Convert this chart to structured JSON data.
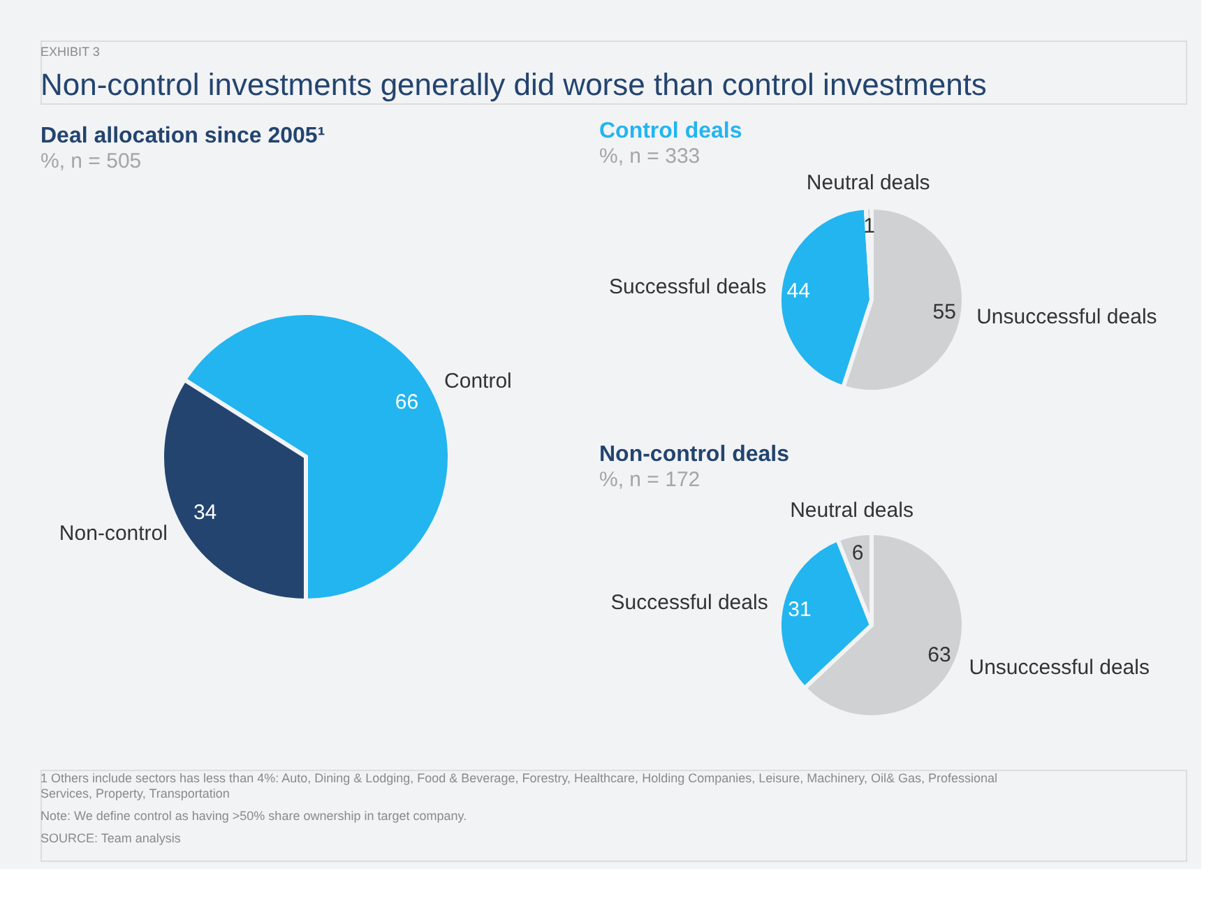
{
  "chart_data": [
    {
      "type": "pie",
      "title": "Deal allocation since 2005¹",
      "subtitle": "%, n = 505",
      "categories": [
        "Control",
        "Non-control"
      ],
      "values": [
        66,
        34
      ],
      "colors": [
        "#22b5ef",
        "#23446f"
      ],
      "data_labels": true,
      "annotations": [
        "EXHIBIT 3",
        "Non-control investments generally did worse than control investments",
        "1 Others include sectors has less than 4%: Auto, Dining & Lodging, Food & Beverage, Forestry,  Healthcare, Holding Companies, Leisure, Machinery, Oil& Gas, Professional Services, Property, Transportation",
        "Note: We define control as having >50% share ownership in target company.",
        "SOURCE: Team analysis"
      ]
    },
    {
      "type": "pie",
      "title": "Control deals",
      "subtitle": "%, n = 333",
      "categories": [
        "Unsuccessful deals",
        "Successful deals",
        "Neutral deals"
      ],
      "values": [
        55,
        44,
        1
      ],
      "colors": [
        "#d0d1d3",
        "#22b5ef",
        "#d0d1d3"
      ],
      "data_labels": true
    },
    {
      "type": "pie",
      "title": "Non-control deals",
      "subtitle": "%, n = 172",
      "categories": [
        "Unsuccessful deals",
        "Successful deals",
        "Neutral deals"
      ],
      "values": [
        63,
        31,
        6
      ],
      "colors": [
        "#d0d1d3",
        "#22b5ef",
        "#d0d1d3"
      ],
      "data_labels": true
    }
  ]
}
